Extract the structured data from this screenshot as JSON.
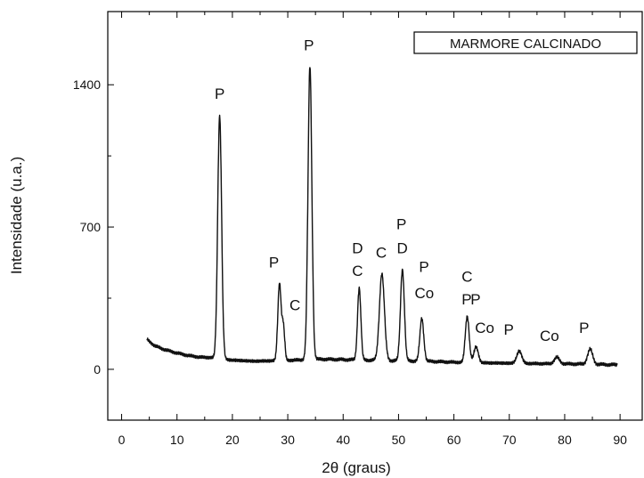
{
  "chart_data": {
    "type": "line",
    "xlabel": "2θ (graus)",
    "ylabel": "Intensidade (u.a.)",
    "legend": "MARMORE CALCINADO",
    "legend_position": "top-right",
    "grid": false,
    "xlim": [
      -2.5,
      94
    ],
    "ylim": [
      -250,
      1760
    ],
    "x_ticks": [
      0,
      10,
      20,
      30,
      40,
      50,
      60,
      70,
      80,
      90
    ],
    "y_ticks": [
      0,
      700,
      1400
    ],
    "baseline": [
      [
        4.5,
        150
      ],
      [
        6,
        115
      ],
      [
        8,
        95
      ],
      [
        10,
        80
      ],
      [
        12,
        68
      ],
      [
        14,
        60
      ],
      [
        16,
        58
      ],
      [
        20,
        45
      ],
      [
        24,
        40
      ],
      [
        27,
        42
      ],
      [
        31,
        45
      ],
      [
        36,
        50
      ],
      [
        40,
        48
      ],
      [
        45,
        45
      ],
      [
        50,
        42
      ],
      [
        55,
        40
      ],
      [
        60,
        35
      ],
      [
        65,
        32
      ],
      [
        70,
        30
      ],
      [
        75,
        28
      ],
      [
        80,
        27
      ],
      [
        85,
        25
      ],
      [
        89.5,
        22
      ]
    ],
    "peaks": [
      {
        "x": 17.7,
        "y": 1250,
        "w": 0.35
      },
      {
        "x": 28.5,
        "y": 420,
        "w": 0.3
      },
      {
        "x": 29.2,
        "y": 210,
        "w": 0.25
      },
      {
        "x": 34.0,
        "y": 1490,
        "w": 0.35
      },
      {
        "x": 42.9,
        "y": 400,
        "w": 0.3
      },
      {
        "x": 47.0,
        "y": 470,
        "w": 0.45
      },
      {
        "x": 50.7,
        "y": 490,
        "w": 0.35
      },
      {
        "x": 54.2,
        "y": 250,
        "w": 0.35
      },
      {
        "x": 62.4,
        "y": 260,
        "w": 0.35
      },
      {
        "x": 64.0,
        "y": 110,
        "w": 0.4
      },
      {
        "x": 71.8,
        "y": 90,
        "w": 0.45
      },
      {
        "x": 78.6,
        "y": 60,
        "w": 0.45
      },
      {
        "x": 84.6,
        "y": 100,
        "w": 0.45
      }
    ],
    "annotations": [
      {
        "text": "P",
        "x": 16.8,
        "y": 1330
      },
      {
        "text": "P",
        "x": 26.6,
        "y": 500
      },
      {
        "text": "C",
        "x": 30.3,
        "y": 290
      },
      {
        "text": "P",
        "x": 32.9,
        "y": 1570
      },
      {
        "text": "D",
        "x": 41.6,
        "y": 570
      },
      {
        "text": "C",
        "x": 41.6,
        "y": 460
      },
      {
        "text": "C",
        "x": 45.9,
        "y": 550
      },
      {
        "text": "P",
        "x": 49.6,
        "y": 690
      },
      {
        "text": "D",
        "x": 49.7,
        "y": 570
      },
      {
        "text": "P",
        "x": 53.7,
        "y": 480
      },
      {
        "text": "Co",
        "x": 52.9,
        "y": 350
      },
      {
        "text": "C",
        "x": 61.4,
        "y": 430
      },
      {
        "text": "P",
        "x": 61.4,
        "y": 320
      },
      {
        "text": "P",
        "x": 63.0,
        "y": 320
      },
      {
        "text": "Co",
        "x": 63.8,
        "y": 180
      },
      {
        "text": "P",
        "x": 69.0,
        "y": 170
      },
      {
        "text": "Co",
        "x": 75.5,
        "y": 140
      },
      {
        "text": "P",
        "x": 82.6,
        "y": 180
      }
    ]
  }
}
